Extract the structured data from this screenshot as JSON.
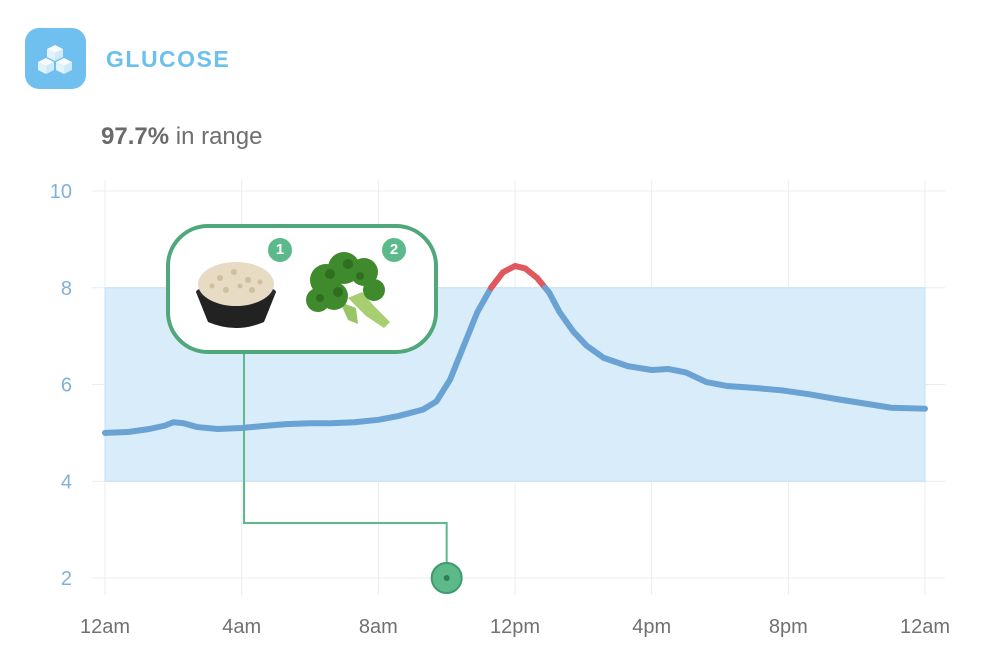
{
  "header": {
    "title": "GLUCOSE",
    "icon": "sugar-cubes-icon",
    "icon_color": "#6fc0ef"
  },
  "summary": {
    "percent": "97.7%",
    "label": "in range"
  },
  "meal": {
    "items": [
      {
        "number": "1",
        "icon": "rice-bowl-icon"
      },
      {
        "number": "2",
        "icon": "broccoli-icon"
      }
    ],
    "time": 10
  },
  "chart_data": {
    "type": "line",
    "y_ticks": [
      "10",
      "8",
      "6",
      "4",
      "2"
    ],
    "x_ticks": [
      "12am",
      "4am",
      "8am",
      "12pm",
      "4pm",
      "8pm",
      "12am"
    ],
    "xlim": [
      0,
      24
    ],
    "ylim": [
      2,
      10
    ],
    "target_range": [
      4,
      8
    ],
    "grid": true,
    "colors": {
      "line": "#6aa2d3",
      "out_of_range": "#e0585d",
      "range_fill": "#d9ecf9",
      "grid": "#e8edf1",
      "marker": "#5cb98a"
    },
    "series": [
      {
        "x": [
          0,
          0.7,
          1.3,
          1.75,
          2.0,
          2.3,
          2.7,
          3.3,
          4.0,
          4.6,
          5.3,
          6.0,
          6.6,
          7.3,
          8.0,
          8.6,
          9.3,
          9.7,
          10.1,
          10.5,
          10.9,
          11.3,
          11.65,
          12.0,
          12.3,
          12.65,
          13.0,
          13.3,
          13.7,
          14.1,
          14.6,
          15.3,
          16.0,
          16.5,
          17.0,
          17.6,
          18.2,
          19.0,
          19.8,
          20.6,
          21.4,
          22.3,
          23.0,
          24.0
        ],
        "y": [
          5.0,
          5.02,
          5.08,
          5.15,
          5.22,
          5.2,
          5.12,
          5.08,
          5.1,
          5.14,
          5.18,
          5.2,
          5.2,
          5.22,
          5.27,
          5.35,
          5.48,
          5.65,
          6.1,
          6.8,
          7.5,
          8.0,
          8.32,
          8.45,
          8.4,
          8.2,
          7.9,
          7.5,
          7.1,
          6.8,
          6.55,
          6.38,
          6.3,
          6.32,
          6.25,
          6.05,
          5.97,
          5.93,
          5.88,
          5.8,
          5.7,
          5.6,
          5.52,
          5.5
        ]
      }
    ]
  }
}
